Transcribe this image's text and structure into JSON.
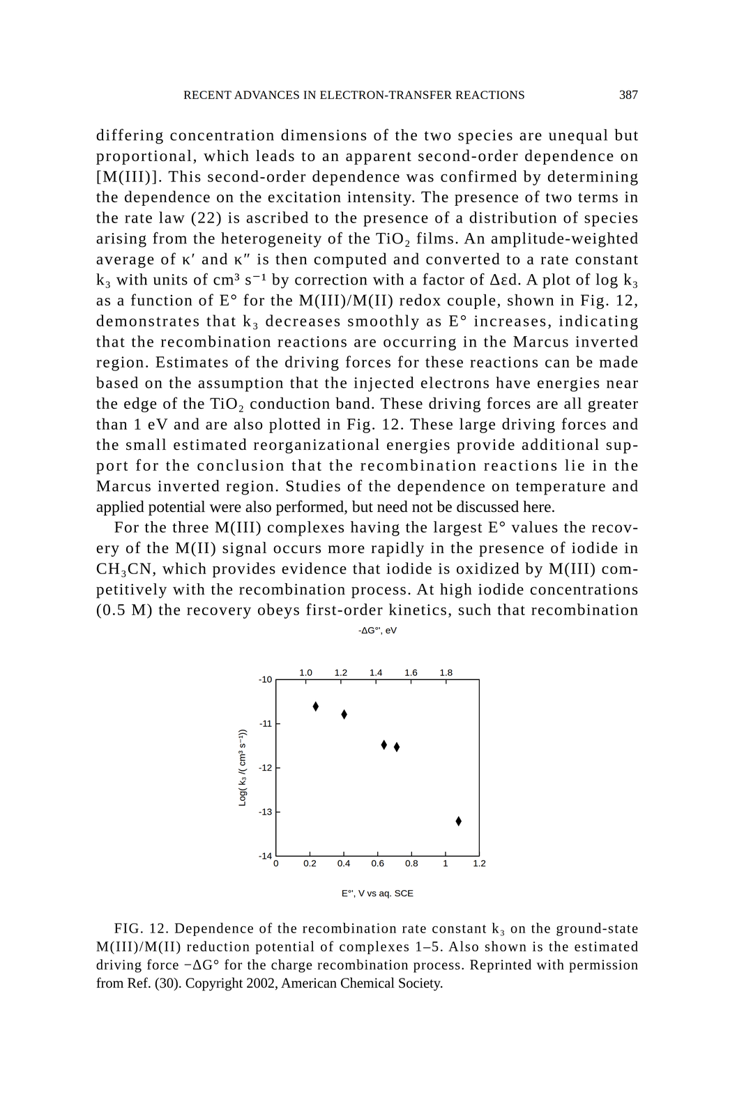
{
  "header": {
    "title": "RECENT ADVANCES IN ELECTRON-TRANSFER REACTIONS",
    "page_number": "387"
  },
  "paragraphs": [
    {
      "lines": [
        "differing concentration dimensions of the two species are unequal but",
        "proportional, which leads to an apparent second-order dependence on",
        "[M(III)]. This second-order dependence was confirmed by determining",
        "the dependence on the excitation intensity. The presence of two terms in",
        "the rate law (22) is ascribed to the presence of a distribution of species",
        "arising from the heterogeneity of the TiO₂ films. An amplitude-weighted",
        "average of κ′ and κ″ is then computed and converted to a rate constant",
        "k₃ with units of cm³ s⁻¹ by correction with a factor of Δεd. A plot of log k₃",
        "as a function of E° for the M(III)/M(II) redox couple, shown in Fig. 12,",
        "demonstrates that k₃ decreases smoothly as E° increases, indicating",
        "that the recombination reactions are occurring in the Marcus inverted",
        "region. Estimates of the driving forces for these reactions can be made",
        "based on the assumption that the injected electrons have energies near",
        "the edge of the TiO₂ conduction band. These driving forces are all greater",
        "than 1 eV and are also plotted in Fig. 12. These large driving forces and",
        "the small estimated reorganizational energies provide additional sup-",
        "port for the conclusion that the recombination reactions lie in the",
        "Marcus inverted region. Studies of the dependence on temperature and",
        "applied potential were also performed, but need not be discussed here."
      ]
    },
    {
      "lines": [
        "For the three M(III) complexes having the largest E° values the recov-",
        "ery of the M(II) signal occurs more rapidly in the presence of iodide in",
        "CH₃CN, which provides evidence that iodide is oxidized by M(III) com-",
        "petitively with the recombination process. At high iodide concentrations",
        "(0.5 M) the recovery obeys first-order kinetics, such that recombination"
      ]
    }
  ],
  "chart_data": {
    "type": "scatter",
    "x2_label": "-ΔG°', eV",
    "x_label": "E°', V vs aq. SCE",
    "y_label": "Log( k₃ /( cm³ s⁻¹))",
    "x": [
      0.235,
      0.403,
      0.638,
      0.713,
      1.078
    ],
    "values": [
      -10.61,
      -10.79,
      -11.48,
      -11.53,
      -13.21
    ],
    "xlim": [
      0,
      1.2
    ],
    "xticks": [
      0,
      0.2,
      0.4,
      0.6,
      0.8,
      1,
      1.2
    ],
    "x2lim": [
      0.83,
      1.99
    ],
    "x2ticks": [
      {
        "value": 1,
        "label": "1.0"
      },
      1.2,
      1.4,
      1.6,
      1.8
    ],
    "ylim": [
      -14,
      -10
    ],
    "yticks": [
      -10,
      -11,
      -12,
      -13,
      -14
    ],
    "marker": "diamond",
    "color": "#000000"
  },
  "caption": {
    "lines": [
      "FIG. 12. Dependence of the recombination rate constant k₃ on the ground-state",
      "M(III)/M(II) reduction potential of complexes 1–5. Also shown is the estimated",
      "driving force −ΔG° for the charge recombination process. Reprinted with permission",
      "from Ref. (30). Copyright 2002, American Chemical Society."
    ]
  }
}
